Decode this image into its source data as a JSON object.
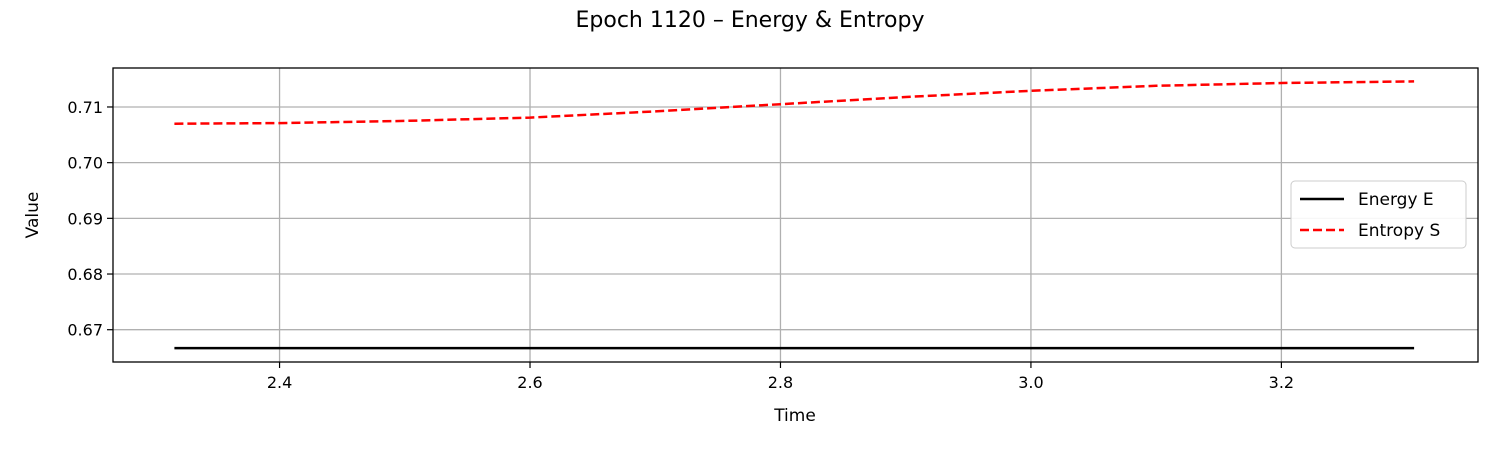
{
  "chart_data": {
    "type": "line",
    "title": "Epoch 1120 – Energy & Entropy",
    "xlabel": "Time",
    "ylabel": "Value",
    "xlim": [
      2.267,
      3.357
    ],
    "ylim": [
      0.6642,
      0.717
    ],
    "grid": true,
    "legend_position": "center-right",
    "x_ticks": [
      2.4,
      2.6,
      2.8,
      3.0,
      3.2
    ],
    "x_tick_labels": [
      "2.4",
      "2.6",
      "2.8",
      "3.0",
      "3.2"
    ],
    "y_ticks": [
      0.67,
      0.68,
      0.69,
      0.7,
      0.71
    ],
    "y_tick_labels": [
      "0.67",
      "0.68",
      "0.69",
      "0.70",
      "0.71"
    ],
    "series": [
      {
        "name": "Energy E",
        "color": "#000000",
        "style": "solid",
        "x": [
          2.316,
          2.5,
          2.7,
          2.9,
          3.1,
          3.306
        ],
        "y": [
          0.6667,
          0.6667,
          0.6667,
          0.6667,
          0.6667,
          0.6667
        ]
      },
      {
        "name": "Entropy S",
        "color": "#ff0000",
        "style": "dashed",
        "x": [
          2.316,
          2.4,
          2.5,
          2.6,
          2.7,
          2.8,
          2.9,
          3.0,
          3.1,
          3.2,
          3.306
        ],
        "y": [
          0.707,
          0.7071,
          0.7075,
          0.7081,
          0.7092,
          0.7105,
          0.7118,
          0.7129,
          0.7138,
          0.7143,
          0.7146
        ]
      }
    ]
  }
}
